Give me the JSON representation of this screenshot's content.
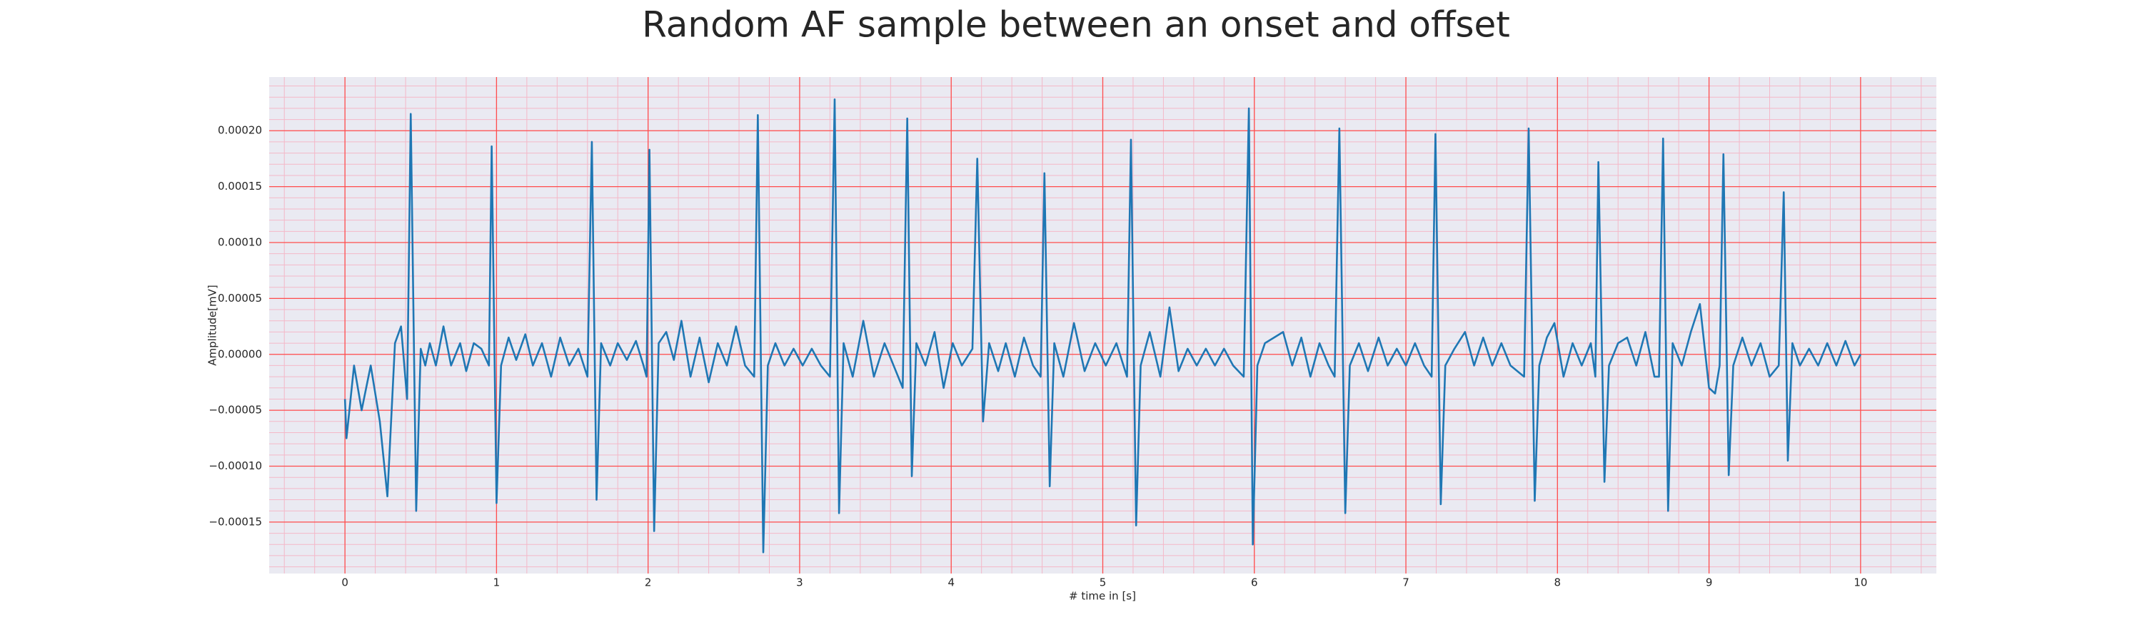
{
  "chart_data": {
    "type": "line",
    "title": "Random AF sample between an onset and offset",
    "x_label": "# time in [s]",
    "y_label": "Amplitude[mV]",
    "xlim": [
      -0.5,
      10.5
    ],
    "ylim": [
      -0.000196,
      0.000248
    ],
    "xticks": [
      0,
      1,
      2,
      3,
      4,
      5,
      6,
      7,
      8,
      9,
      10
    ],
    "yticks": [
      {
        "value": -0.00015,
        "label": "−0.00015"
      },
      {
        "value": -0.0001,
        "label": "−0.00010"
      },
      {
        "value": -5e-05,
        "label": "−0.00005"
      },
      {
        "value": 0,
        "label": "0.00000"
      },
      {
        "value": 5e-05,
        "label": "0.00005"
      },
      {
        "value": 0.0001,
        "label": "0.00010"
      },
      {
        "value": 0.00015,
        "label": "0.00015"
      },
      {
        "value": 0.0002,
        "label": "0.00020"
      }
    ],
    "grid": true,
    "minor_grid": true,
    "grid_color": "#ff4d4d",
    "minor_grid_color": "#f4b8c8",
    "background": "#eaeaf2",
    "x": [
      0,
      0.01,
      0.06,
      0.11,
      0.17,
      0.23,
      0.28,
      0.33,
      0.37,
      0.41,
      0.434,
      0.47,
      0.5,
      0.53,
      0.56,
      0.6,
      0.65,
      0.7,
      0.76,
      0.8,
      0.85,
      0.9,
      0.95,
      0.968,
      1.0,
      1.03,
      1.08,
      1.13,
      1.19,
      1.24,
      1.3,
      1.36,
      1.42,
      1.48,
      1.54,
      1.6,
      1.629,
      1.66,
      1.69,
      1.75,
      1.8,
      1.86,
      1.92,
      1.97,
      1.99,
      2.009,
      2.04,
      2.07,
      2.12,
      2.17,
      2.22,
      2.28,
      2.34,
      2.4,
      2.46,
      2.52,
      2.58,
      2.64,
      2.7,
      2.724,
      2.76,
      2.79,
      2.84,
      2.9,
      2.96,
      3.02,
      3.08,
      3.14,
      3.2,
      3.231,
      3.26,
      3.29,
      3.35,
      3.42,
      3.49,
      3.56,
      3.62,
      3.68,
      3.71,
      3.74,
      3.77,
      3.83,
      3.89,
      3.95,
      4.01,
      4.07,
      4.14,
      4.172,
      4.21,
      4.25,
      4.31,
      4.36,
      4.42,
      4.48,
      4.54,
      4.59,
      4.615,
      4.65,
      4.68,
      4.74,
      4.81,
      4.88,
      4.95,
      5.02,
      5.09,
      5.16,
      5.186,
      5.22,
      5.25,
      5.31,
      5.38,
      5.44,
      5.5,
      5.56,
      5.62,
      5.68,
      5.74,
      5.8,
      5.86,
      5.93,
      5.964,
      5.99,
      6.02,
      6.07,
      6.13,
      6.19,
      6.25,
      6.31,
      6.37,
      6.43,
      6.49,
      6.53,
      6.561,
      6.6,
      6.63,
      6.69,
      6.75,
      6.82,
      6.88,
      6.94,
      7.0,
      7.06,
      7.12,
      7.17,
      7.195,
      7.23,
      7.26,
      7.32,
      7.39,
      7.45,
      7.51,
      7.57,
      7.63,
      7.69,
      7.78,
      7.81,
      7.85,
      7.88,
      7.93,
      7.98,
      8.04,
      8.1,
      8.16,
      8.22,
      8.25,
      8.27,
      8.31,
      8.34,
      8.4,
      8.46,
      8.52,
      8.58,
      8.64,
      8.67,
      8.697,
      8.73,
      8.76,
      8.82,
      8.88,
      8.94,
      9.0,
      9.04,
      9.07,
      9.095,
      9.13,
      9.16,
      9.22,
      9.28,
      9.34,
      9.4,
      9.46,
      9.493,
      9.52,
      9.55,
      9.6,
      9.66,
      9.72,
      9.78,
      9.84,
      9.9,
      9.96,
      10.0
    ],
    "series": [
      {
        "color": "#1f77b4",
        "values": [
          -4e-05,
          -7.5e-05,
          -1e-05,
          -5e-05,
          -1e-05,
          -6e-05,
          -0.000127,
          1e-05,
          2.5e-05,
          -4e-05,
          0.000215,
          -0.00014,
          5e-06,
          -1e-05,
          1e-05,
          -1e-05,
          2.5e-05,
          -1e-05,
          1e-05,
          -1.5e-05,
          1e-05,
          5e-06,
          -1e-05,
          0.000186,
          -0.000133,
          -1e-05,
          1.5e-05,
          -5e-06,
          1.8e-05,
          -1e-05,
          1e-05,
          -2e-05,
          1.5e-05,
          -1e-05,
          5e-06,
          -2e-05,
          0.00019,
          -0.00013,
          1e-05,
          -1e-05,
          1e-05,
          -5e-06,
          1.2e-05,
          -1e-05,
          -2e-05,
          0.000183,
          -0.000158,
          1e-05,
          2e-05,
          -5e-06,
          3e-05,
          -2e-05,
          1.5e-05,
          -2.5e-05,
          1e-05,
          -1e-05,
          2.5e-05,
          -1e-05,
          -2e-05,
          0.000214,
          -0.000177,
          -1e-05,
          1e-05,
          -1e-05,
          5e-06,
          -1e-05,
          5e-06,
          -1e-05,
          -2e-05,
          0.000228,
          -0.000142,
          1e-05,
          -2e-05,
          3e-05,
          -2e-05,
          1e-05,
          -1e-05,
          -3e-05,
          0.000211,
          -0.000109,
          1e-05,
          -1e-05,
          2e-05,
          -3e-05,
          1e-05,
          -1e-05,
          5e-06,
          0.000175,
          -6e-05,
          1e-05,
          -1.5e-05,
          1e-05,
          -2e-05,
          1.5e-05,
          -1e-05,
          -2e-05,
          0.000162,
          -0.000118,
          1e-05,
          -2e-05,
          2.8e-05,
          -1.5e-05,
          1e-05,
          -1e-05,
          1e-05,
          -2e-05,
          0.000192,
          -0.000153,
          -1e-05,
          2e-05,
          -2e-05,
          4.2e-05,
          -1.5e-05,
          5e-06,
          -1e-05,
          5e-06,
          -1e-05,
          5e-06,
          -1e-05,
          -2e-05,
          0.00022,
          -0.00017,
          -1e-05,
          1e-05,
          1.5e-05,
          2e-05,
          -1e-05,
          1.5e-05,
          -2e-05,
          1e-05,
          -1e-05,
          -2e-05,
          0.000202,
          -0.000142,
          -1e-05,
          1e-05,
          -1.5e-05,
          1.5e-05,
          -1e-05,
          5e-06,
          -1e-05,
          1e-05,
          -1e-05,
          -2e-05,
          0.000197,
          -0.000134,
          -1e-05,
          5e-06,
          2e-05,
          -1e-05,
          1.5e-05,
          -1e-05,
          1e-05,
          -1e-05,
          -2e-05,
          0.000202,
          -0.000131,
          -1e-05,
          1.5e-05,
          2.8e-05,
          -2e-05,
          1e-05,
          -1e-05,
          1e-05,
          -2e-05,
          0.000172,
          -0.000114,
          -1e-05,
          1e-05,
          1.5e-05,
          -1e-05,
          2e-05,
          -2e-05,
          -2e-05,
          0.000193,
          -0.00014,
          1e-05,
          -1e-05,
          2e-05,
          4.5e-05,
          -3e-05,
          -3.5e-05,
          -1e-05,
          0.000179,
          -0.000108,
          -1e-05,
          1.5e-05,
          -1e-05,
          1e-05,
          -2e-05,
          -1e-05,
          0.000145,
          -9.5e-05,
          1e-05,
          -1e-05,
          5e-06,
          -1e-05,
          1e-05,
          -1e-05,
          1.2e-05,
          -1e-05,
          0
        ]
      }
    ]
  }
}
